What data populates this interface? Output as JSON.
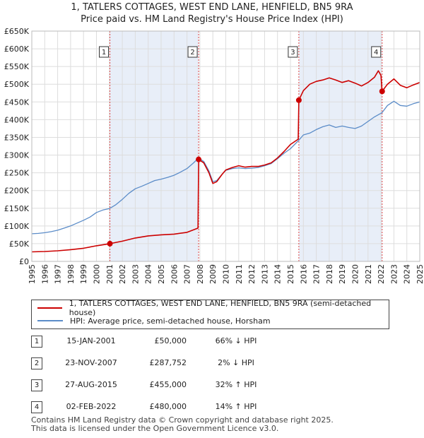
{
  "header": {
    "title_line1": "1, TATLERS COTTAGES, WEST END LANE, HENFIELD, BN5 9RA",
    "title_line2": "Price paid vs. HM Land Registry's House Price Index (HPI)"
  },
  "legend": {
    "property_label": "1, TATLERS COTTAGES, WEST END LANE, HENFIELD, BN5 9RA (semi-detached house)",
    "hpi_label": "HPI: Average price, semi-detached house, Horsham"
  },
  "transactions": [
    {
      "num": "1",
      "date": "15-JAN-2001",
      "price": "£50,000",
      "hpi": "66% ↓ HPI"
    },
    {
      "num": "2",
      "date": "23-NOV-2007",
      "price": "£287,752",
      "hpi": "2% ↓ HPI"
    },
    {
      "num": "3",
      "date": "27-AUG-2015",
      "price": "£455,000",
      "hpi": "32% ↑ HPI"
    },
    {
      "num": "4",
      "date": "02-FEB-2022",
      "price": "£480,000",
      "hpi": "14% ↑ HPI"
    }
  ],
  "footer": {
    "line1": "Contains HM Land Registry data © Crown copyright and database right 2025.",
    "line2": "This data is licensed under the Open Government Licence v3.0."
  },
  "colors": {
    "property": "#cc0000",
    "hpi": "#5b8cc8",
    "shade": "#e8eef8",
    "vline": "#dd4444",
    "grid": "#dddddd"
  },
  "chart_data": {
    "type": "line",
    "title": "1, TATLERS COTTAGES, WEST END LANE, HENFIELD, BN5 9RA - Price paid vs. HM Land Registry's House Price Index (HPI)",
    "xlabel": "",
    "ylabel": "",
    "xlim": [
      1995,
      2025
    ],
    "ylim": [
      0,
      650000
    ],
    "grid": true,
    "x_ticks": [
      "1995",
      "1996",
      "1997",
      "1998",
      "1999",
      "2000",
      "2001",
      "2002",
      "2003",
      "2004",
      "2005",
      "2006",
      "2007",
      "2008",
      "2009",
      "2010",
      "2011",
      "2012",
      "2013",
      "2014",
      "2015",
      "2016",
      "2017",
      "2018",
      "2019",
      "2020",
      "2021",
      "2022",
      "2023",
      "2024",
      "2025"
    ],
    "y_ticks": [
      0,
      50000,
      100000,
      150000,
      200000,
      250000,
      300000,
      350000,
      400000,
      450000,
      500000,
      550000,
      600000,
      650000
    ],
    "y_tick_labels": [
      "£0",
      "£50K",
      "£100K",
      "£150K",
      "£200K",
      "£250K",
      "£300K",
      "£350K",
      "£400K",
      "£450K",
      "£500K",
      "£550K",
      "£600K",
      "£650K"
    ],
    "shaded_periods": [
      [
        2001.04,
        2007.9
      ],
      [
        2015.65,
        2022.09
      ]
    ],
    "sales": [
      {
        "label": "1",
        "x": 2001.04,
        "y": 50000
      },
      {
        "label": "2",
        "x": 2007.9,
        "y": 287752
      },
      {
        "label": "3",
        "x": 2015.65,
        "y": 455000
      },
      {
        "label": "4",
        "x": 2022.09,
        "y": 480000
      }
    ],
    "series": [
      {
        "name": "HPI: Average price, semi-detached house, Horsham",
        "x": [
          1995.0,
          1995.5,
          1996.0,
          1996.5,
          1997.0,
          1997.5,
          1998.0,
          1998.5,
          1999.0,
          1999.5,
          2000.0,
          2000.5,
          2001.0,
          2001.5,
          2002.0,
          2002.5,
          2003.0,
          2003.5,
          2004.0,
          2004.5,
          2005.0,
          2005.5,
          2006.0,
          2006.5,
          2007.0,
          2007.5,
          2007.9,
          2008.3,
          2008.7,
          2009.0,
          2009.3,
          2009.7,
          2010.0,
          2010.5,
          2011.0,
          2011.5,
          2012.0,
          2012.5,
          2013.0,
          2013.5,
          2014.0,
          2014.5,
          2015.0,
          2015.65,
          2016.0,
          2016.5,
          2017.0,
          2017.5,
          2018.0,
          2018.5,
          2019.0,
          2019.5,
          2020.0,
          2020.5,
          2021.0,
          2021.5,
          2022.09,
          2022.5,
          2023.0,
          2023.5,
          2024.0,
          2024.5,
          2025.0
        ],
        "values": [
          78000,
          79000,
          81000,
          84000,
          88000,
          94000,
          100000,
          108000,
          116000,
          125000,
          138000,
          145000,
          149000,
          160000,
          175000,
          192000,
          205000,
          212000,
          220000,
          228000,
          232000,
          237000,
          243000,
          252000,
          262000,
          278000,
          292000,
          282000,
          255000,
          225000,
          228000,
          245000,
          257000,
          262000,
          264000,
          262000,
          263000,
          265000,
          270000,
          276000,
          290000,
          305000,
          318000,
          342000,
          357000,
          362000,
          372000,
          380000,
          385000,
          378000,
          382000,
          378000,
          375000,
          382000,
          395000,
          408000,
          420000,
          440000,
          452000,
          440000,
          438000,
          445000,
          450000
        ]
      },
      {
        "name": "1, TATLERS COTTAGES, WEST END LANE, HENFIELD, BN5 9RA (semi-detached house)",
        "x": [
          1995.0,
          1996.0,
          1997.0,
          1998.0,
          1999.0,
          2000.0,
          2001.04,
          2002.0,
          2003.0,
          2004.0,
          2005.0,
          2006.0,
          2007.0,
          2007.85,
          2007.9,
          2008.3,
          2008.7,
          2009.0,
          2009.3,
          2009.7,
          2010.0,
          2010.5,
          2011.0,
          2011.5,
          2012.0,
          2012.5,
          2013.0,
          2013.5,
          2014.0,
          2014.5,
          2015.0,
          2015.6,
          2015.65,
          2016.0,
          2016.5,
          2017.0,
          2017.5,
          2018.0,
          2018.5,
          2019.0,
          2019.5,
          2020.0,
          2020.5,
          2021.0,
          2021.5,
          2021.8,
          2022.0,
          2022.09,
          2022.5,
          2023.0,
          2023.5,
          2024.0,
          2024.5,
          2025.0
        ],
        "values": [
          27000,
          28000,
          30000,
          33000,
          37000,
          44000,
          50000,
          57000,
          66000,
          72000,
          75000,
          77000,
          82000,
          94000,
          287752,
          278000,
          250000,
          220000,
          225000,
          245000,
          258000,
          265000,
          270000,
          266000,
          268000,
          268000,
          272000,
          278000,
          292000,
          310000,
          330000,
          345000,
          455000,
          482000,
          500000,
          508000,
          512000,
          518000,
          512000,
          505000,
          510000,
          503000,
          495000,
          505000,
          520000,
          538000,
          525000,
          480000,
          500000,
          515000,
          497000,
          490000,
          498000,
          505000
        ]
      }
    ]
  }
}
